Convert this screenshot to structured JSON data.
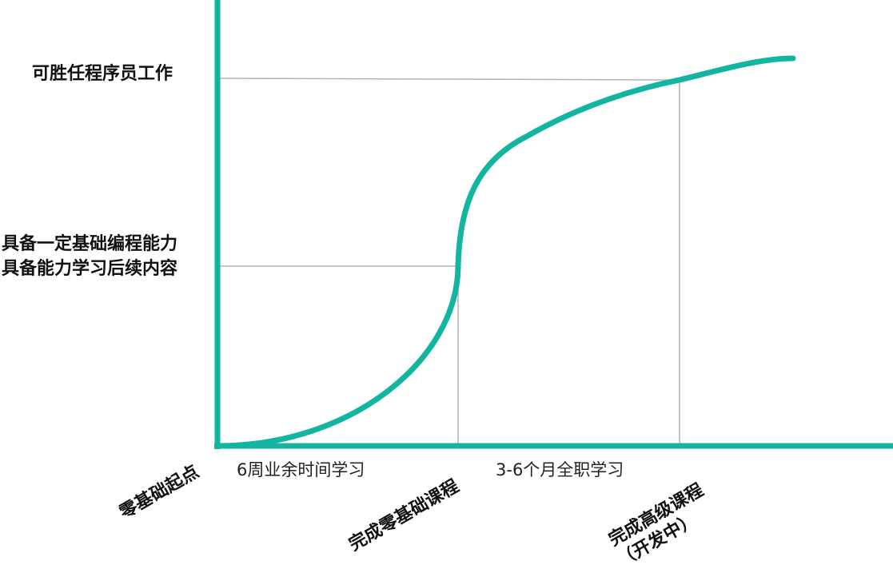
{
  "diagram": {
    "accent_color": "#12b5a0",
    "guide_color": "#b3b3b3",
    "y_labels": {
      "top": "可胜任程序员工作",
      "mid_line1": "具备一定基础编程能力",
      "mid_line2": "具备能力学习后续内容"
    },
    "x_labels": {
      "origin": "零基础起点",
      "phase1": "6周业余时间学习",
      "milestone1": "完成零基础课程",
      "phase2": "3-6个月全职学习",
      "milestone2_line1": "完成高级课程",
      "milestone2_line2": "（开发中）"
    }
  }
}
